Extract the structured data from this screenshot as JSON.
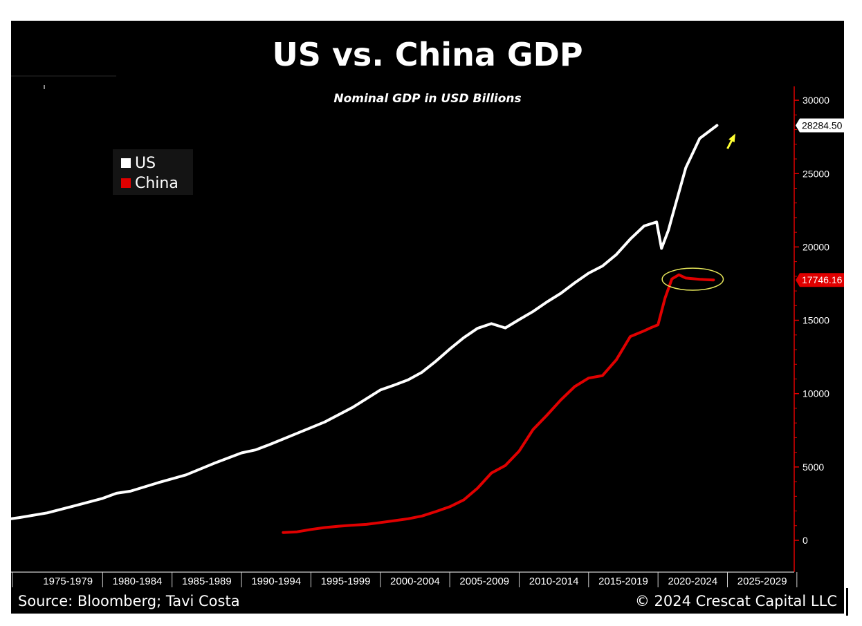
{
  "page": {
    "title": "US vs. China GDP",
    "subtitle": "Nominal GDP in USD Billions",
    "source": "Source: Bloomberg; Tavi Costa",
    "copyright": "© 2024 Crescat Capital LLC"
  },
  "colors": {
    "background": "#000000",
    "us": "#ffffff",
    "china": "#e00000",
    "axis": "#e00000",
    "highlight_ellipse": "#e6e65a",
    "arrow": "#ffff33"
  },
  "chart_data": {
    "type": "line",
    "title": "US vs. China GDP",
    "subtitle": "Nominal GDP in USD Billions",
    "xlabel": "",
    "ylabel": "",
    "xlim": [
      1970,
      2030
    ],
    "ylim": [
      -2000,
      32000
    ],
    "y_axis_position": "right",
    "yticks": [
      0,
      5000,
      10000,
      15000,
      20000,
      25000,
      30000
    ],
    "ytick_labels": [
      "0",
      "5000",
      "10000",
      "15000",
      "20000",
      "25000",
      "30000"
    ],
    "x_periods": [
      {
        "label": "1975-1979",
        "start": 1975,
        "end": 1980
      },
      {
        "label": "1980-1984",
        "start": 1980,
        "end": 1985
      },
      {
        "label": "1985-1989",
        "start": 1985,
        "end": 1990
      },
      {
        "label": "1990-1994",
        "start": 1990,
        "end": 1995
      },
      {
        "label": "1995-1999",
        "start": 1995,
        "end": 2000
      },
      {
        "label": "2000-2004",
        "start": 2000,
        "end": 2005
      },
      {
        "label": "2005-2009",
        "start": 2005,
        "end": 2010
      },
      {
        "label": "2010-2014",
        "start": 2010,
        "end": 2015
      },
      {
        "label": "2015-2019",
        "start": 2015,
        "end": 2020
      },
      {
        "label": "2020-2024",
        "start": 2020,
        "end": 2025
      },
      {
        "label": "2025-2029",
        "start": 2025,
        "end": 2030
      }
    ],
    "legend_position": "top-left",
    "grid": false,
    "series": [
      {
        "name": "US",
        "color": "#ffffff",
        "last_value_label": "28284.50",
        "points": [
          [
            1970,
            1070
          ],
          [
            1972,
            1280
          ],
          [
            1974,
            1550
          ],
          [
            1976,
            1870
          ],
          [
            1978,
            2360
          ],
          [
            1980,
            2860
          ],
          [
            1981,
            3210
          ],
          [
            1982,
            3350
          ],
          [
            1984,
            3930
          ],
          [
            1986,
            4460
          ],
          [
            1988,
            5240
          ],
          [
            1990,
            5960
          ],
          [
            1991,
            6160
          ],
          [
            1992,
            6520
          ],
          [
            1994,
            7290
          ],
          [
            1996,
            8070
          ],
          [
            1998,
            9060
          ],
          [
            2000,
            10250
          ],
          [
            2001,
            10580
          ],
          [
            2002,
            10940
          ],
          [
            2003,
            11460
          ],
          [
            2004,
            12210
          ],
          [
            2005,
            13040
          ],
          [
            2006,
            13810
          ],
          [
            2007,
            14450
          ],
          [
            2008,
            14770
          ],
          [
            2009,
            14480
          ],
          [
            2010,
            15050
          ],
          [
            2011,
            15600
          ],
          [
            2012,
            16250
          ],
          [
            2013,
            16840
          ],
          [
            2014,
            17550
          ],
          [
            2015,
            18210
          ],
          [
            2016,
            18700
          ],
          [
            2017,
            19480
          ],
          [
            2018,
            20530
          ],
          [
            2019,
            21430
          ],
          [
            2019.9,
            21700
          ],
          [
            2020.25,
            19900
          ],
          [
            2020.75,
            21140
          ],
          [
            2021,
            22000
          ],
          [
            2022,
            25400
          ],
          [
            2023,
            27400
          ],
          [
            2024.25,
            28284.5
          ]
        ]
      },
      {
        "name": "China",
        "color": "#e00000",
        "last_value_label": "17746.16",
        "points": [
          [
            1993,
            530
          ],
          [
            1994,
            580
          ],
          [
            1995,
            740
          ],
          [
            1996,
            870
          ],
          [
            1997,
            960
          ],
          [
            1998,
            1030
          ],
          [
            1999,
            1090
          ],
          [
            2000,
            1210
          ],
          [
            2001,
            1340
          ],
          [
            2002,
            1470
          ],
          [
            2003,
            1660
          ],
          [
            2004,
            1960
          ],
          [
            2005,
            2290
          ],
          [
            2006,
            2750
          ],
          [
            2007,
            3550
          ],
          [
            2008,
            4590
          ],
          [
            2009,
            5100
          ],
          [
            2010,
            6090
          ],
          [
            2011,
            7550
          ],
          [
            2012,
            8530
          ],
          [
            2013,
            9570
          ],
          [
            2014,
            10480
          ],
          [
            2015,
            11060
          ],
          [
            2016,
            11230
          ],
          [
            2017,
            12310
          ],
          [
            2018,
            13890
          ],
          [
            2019,
            14280
          ],
          [
            2019.5,
            14500
          ],
          [
            2020,
            14690
          ],
          [
            2020.5,
            16500
          ],
          [
            2021,
            17820
          ],
          [
            2021.5,
            18100
          ],
          [
            2022,
            17880
          ],
          [
            2023,
            17790
          ],
          [
            2024,
            17746.16
          ]
        ]
      }
    ],
    "annotations": [
      {
        "type": "ellipse",
        "label": "China GDP peak highlight",
        "center": [
          2022.5,
          17800
        ],
        "radii": [
          2.2,
          750
        ]
      },
      {
        "type": "arrow",
        "label": "US upward arrow",
        "from": [
          2025.0,
          26700
        ],
        "to": [
          2025.5,
          27600
        ]
      }
    ]
  }
}
